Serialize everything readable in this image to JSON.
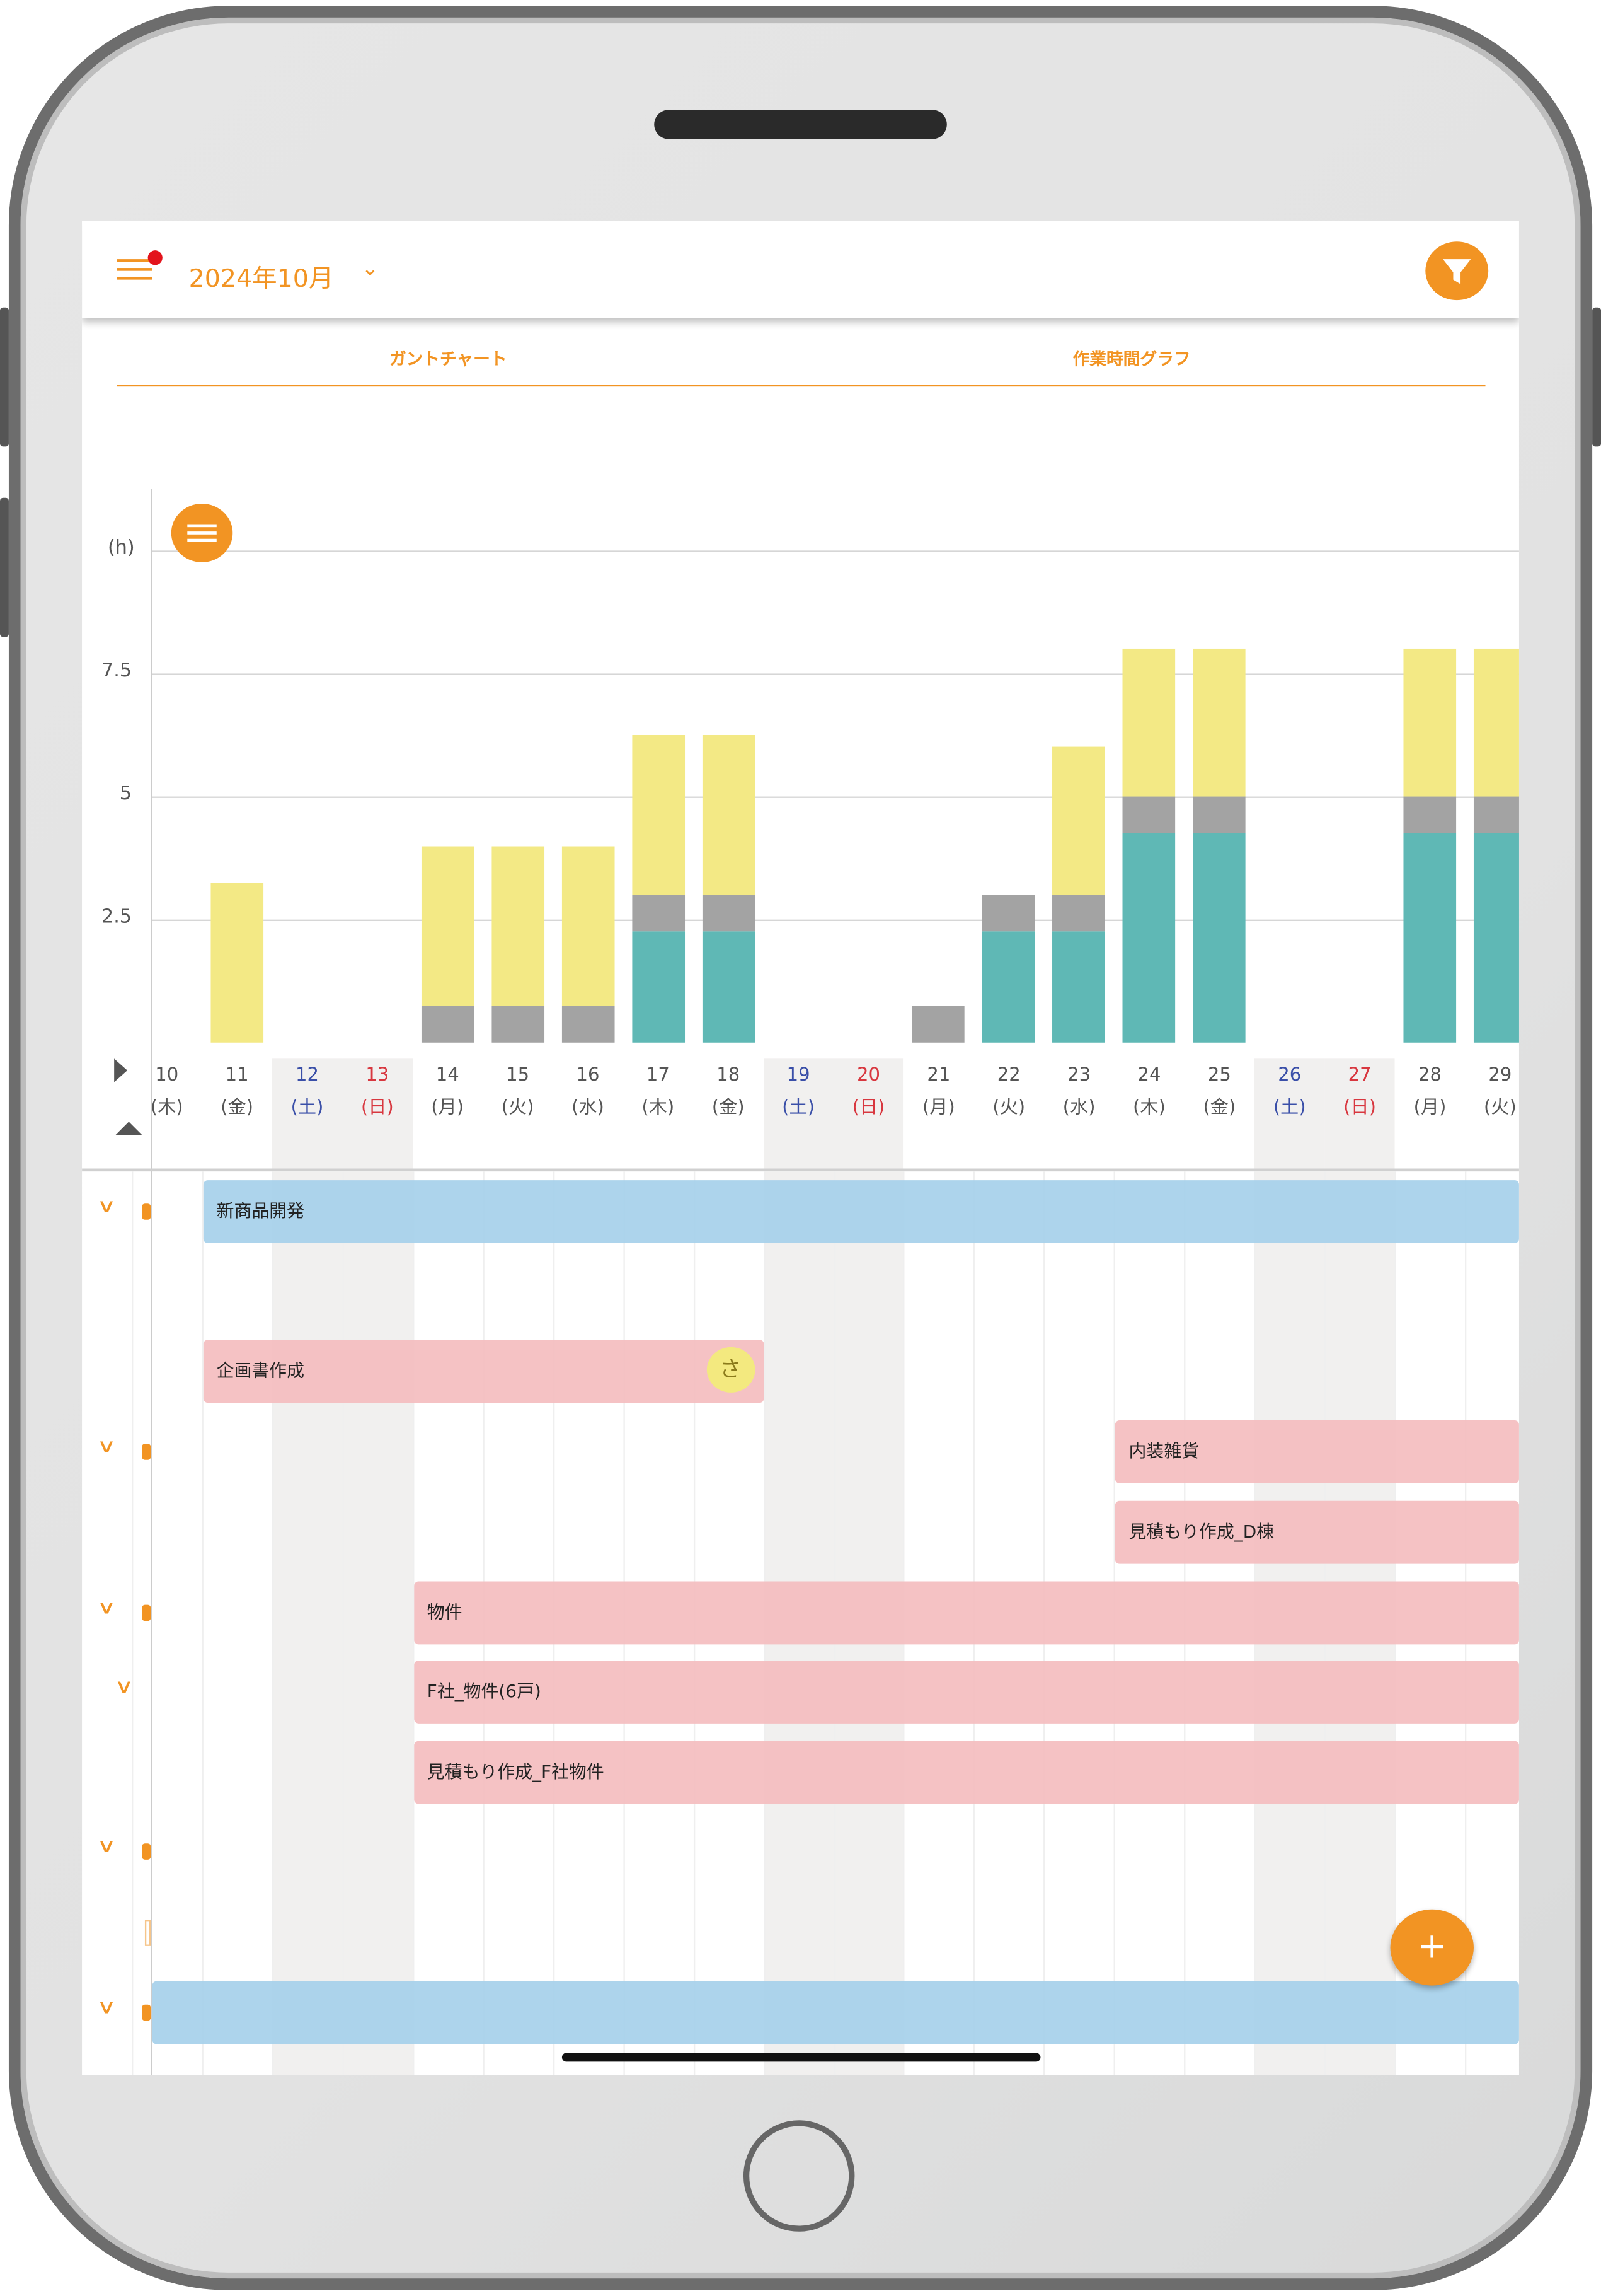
{
  "header": {
    "month": "2024年10月",
    "notification_dot_color": "#e3141c",
    "accent": "#f29423"
  },
  "tabs": [
    {
      "label": "ガントチャート"
    },
    {
      "label": "作業時間グラフ"
    }
  ],
  "chart_data": {
    "type": "bar",
    "stacked": true,
    "ylabel": "(h)",
    "ylim": [
      0,
      10
    ],
    "yticks": [
      "2.5",
      "5",
      "7.5"
    ],
    "grid": true,
    "categories": [
      "10",
      "11",
      "12",
      "13",
      "14",
      "15",
      "16",
      "17",
      "18",
      "19",
      "20",
      "21",
      "22",
      "23",
      "24",
      "25",
      "26",
      "27",
      "28",
      "29"
    ],
    "weekdays": [
      "(木)",
      "(金)",
      "(土)",
      "(日)",
      "(月)",
      "(火)",
      "(水)",
      "(木)",
      "(金)",
      "(土)",
      "(日)",
      "(月)",
      "(火)",
      "(水)",
      "(木)",
      "(金)",
      "(土)",
      "(日)",
      "(月)",
      "(火)"
    ],
    "series": [
      {
        "color": "#5fb8b5",
        "values": [
          0,
          0,
          0,
          0,
          0,
          0,
          0,
          2.25,
          2.25,
          0,
          0,
          0,
          2.25,
          2.25,
          4.25,
          4.25,
          0,
          0,
          4.25,
          4.25
        ]
      },
      {
        "color": "#a3a3a3",
        "values": [
          0,
          0,
          0,
          0,
          0.75,
          0.75,
          0.75,
          0.75,
          0.75,
          0,
          0,
          0.75,
          0.75,
          0.75,
          0.75,
          0.75,
          0,
          0,
          0.75,
          0.75
        ]
      },
      {
        "color": "#f3e985",
        "values": [
          0,
          3.25,
          0,
          0,
          3.25,
          3.25,
          3.25,
          3.25,
          3.25,
          0,
          0,
          0,
          0,
          3,
          3,
          3,
          0,
          0,
          3,
          3
        ]
      }
    ]
  },
  "gantt": {
    "tasks": [
      {
        "label": "新商品開発",
        "color": "blue",
        "start": "11",
        "end": null
      },
      {
        "label": "企画書作成",
        "color": "pink",
        "start": "11",
        "end": "18",
        "assignee": "さ"
      },
      {
        "label": "内装雑貨",
        "color": "pink",
        "start": "24",
        "end": null
      },
      {
        "label": "見積もり作成_D棟",
        "color": "pink",
        "start": "24",
        "end": null
      },
      {
        "label": "物件",
        "color": "pink",
        "start": "14",
        "end": null
      },
      {
        "label": "F社_物件(6戸)",
        "color": "pink",
        "start": "14",
        "end": null
      },
      {
        "label": "見積もり作成_F社物件",
        "color": "pink",
        "start": "14",
        "end": null
      },
      {
        "label": "",
        "color": "blue",
        "start": "10",
        "end": null
      }
    ],
    "add_label": "+"
  }
}
